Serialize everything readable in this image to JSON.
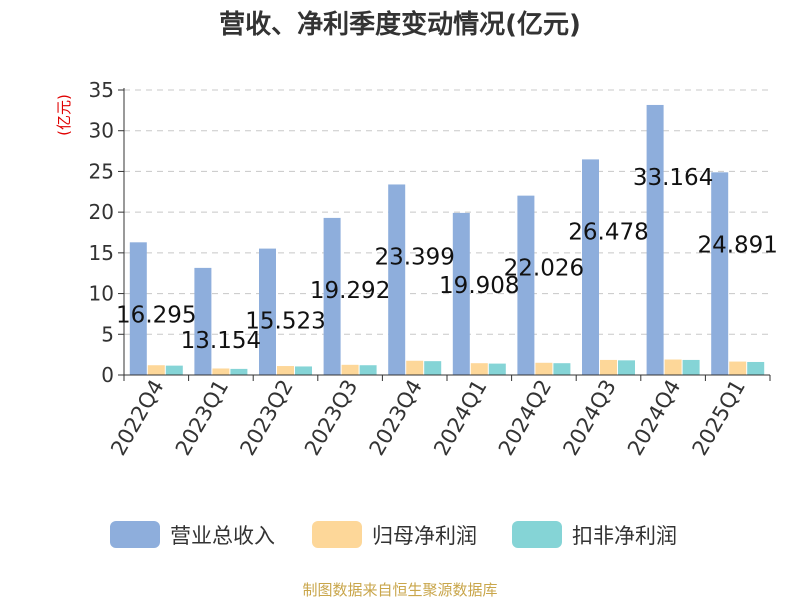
{
  "chart_data": {
    "type": "bar",
    "title": "营收、净利季度变动情况(亿元)",
    "ylabel": "(亿元)",
    "xlabel": "",
    "ylim": [
      0,
      35
    ],
    "yticks": [
      0,
      5,
      10,
      15,
      20,
      25,
      30,
      35
    ],
    "grid": true,
    "legend_position": "bottom",
    "categories": [
      "2022Q4",
      "2023Q1",
      "2023Q2",
      "2023Q3",
      "2023Q4",
      "2024Q1",
      "2024Q2",
      "2024Q3",
      "2024Q4",
      "2025Q1"
    ],
    "series": [
      {
        "name": "营业总收入",
        "color": "#8eaedc",
        "values": [
          16.295,
          13.154,
          15.523,
          19.292,
          23.399,
          19.908,
          22.026,
          26.478,
          33.164,
          24.891
        ],
        "labels": [
          "16.295",
          "13.154",
          "15.523",
          "19.292",
          "23.399",
          "19.908",
          "22.026",
          "26.478",
          "33.164",
          "24.891"
        ]
      },
      {
        "name": "归母净利润",
        "color": "#fdd799",
        "values": [
          1.2,
          0.8,
          1.1,
          1.25,
          1.75,
          1.45,
          1.5,
          1.85,
          1.9,
          1.65
        ]
      },
      {
        "name": "扣非净利润",
        "color": "#85d4d6",
        "values": [
          1.15,
          0.75,
          1.05,
          1.2,
          1.7,
          1.4,
          1.45,
          1.8,
          1.85,
          1.6
        ]
      }
    ]
  },
  "footer": {
    "source": "制图数据来自恒生聚源数据库"
  }
}
